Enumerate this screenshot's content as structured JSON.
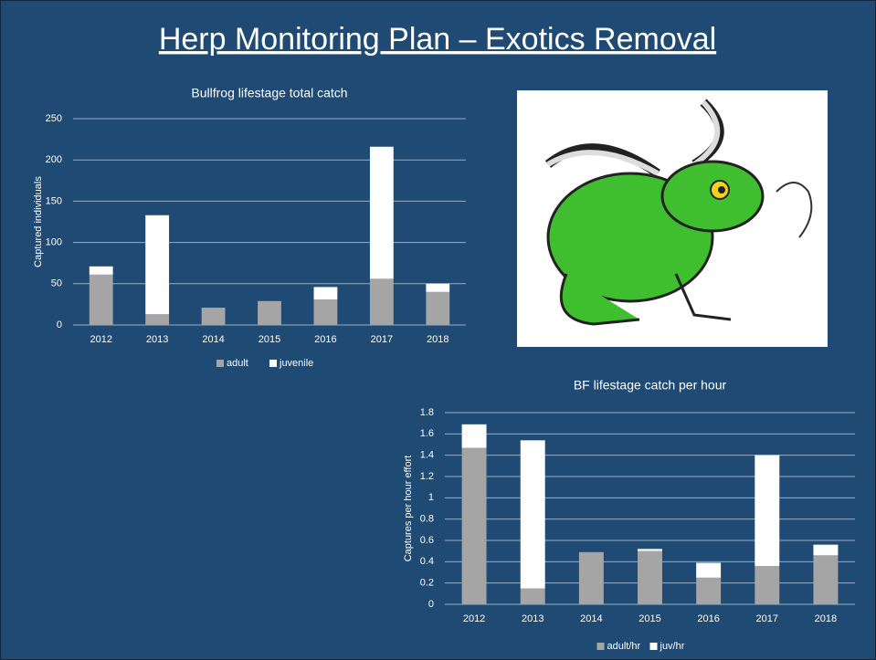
{
  "title": "Herp Monitoring Plan – Exotics Removal",
  "chart_data": [
    {
      "type": "bar",
      "stacked": true,
      "title": "Bullfrog lifestage total catch",
      "y_label": "Captured individuals",
      "categories": [
        "2012",
        "2013",
        "2014",
        "2015",
        "2016",
        "2017",
        "2018"
      ],
      "series": [
        {
          "name": "adult",
          "color": "#a5a5a5",
          "values": [
            61,
            13,
            21,
            29,
            31,
            56,
            40
          ]
        },
        {
          "name": "juvenile",
          "color": "#ffffff",
          "values": [
            10,
            120,
            0,
            0,
            15,
            160,
            10
          ]
        }
      ],
      "ylim": [
        0,
        250
      ],
      "yticks": [
        0,
        50,
        100,
        150,
        200,
        250
      ],
      "grid": true,
      "legend": "bottom"
    },
    {
      "type": "bar",
      "stacked": true,
      "title": "BF lifestage catch per hour",
      "y_label": "Captures per hour effort",
      "categories": [
        "2012",
        "2013",
        "2014",
        "2015",
        "2016",
        "2017",
        "2018"
      ],
      "series": [
        {
          "name": "adult/hr",
          "color": "#a5a5a5",
          "values": [
            1.47,
            0.15,
            0.49,
            0.5,
            0.25,
            0.36,
            0.46
          ]
        },
        {
          "name": "juv/hr",
          "color": "#ffffff",
          "values": [
            0.22,
            1.39,
            0,
            0.02,
            0.14,
            1.04,
            0.1
          ]
        }
      ],
      "ylim": [
        0,
        1.8
      ],
      "yticks": [
        0,
        0.2,
        0.4,
        0.6,
        0.8,
        1,
        1.2,
        1.4,
        1.6,
        1.8
      ],
      "grid": true,
      "legend": "bottom"
    }
  ]
}
